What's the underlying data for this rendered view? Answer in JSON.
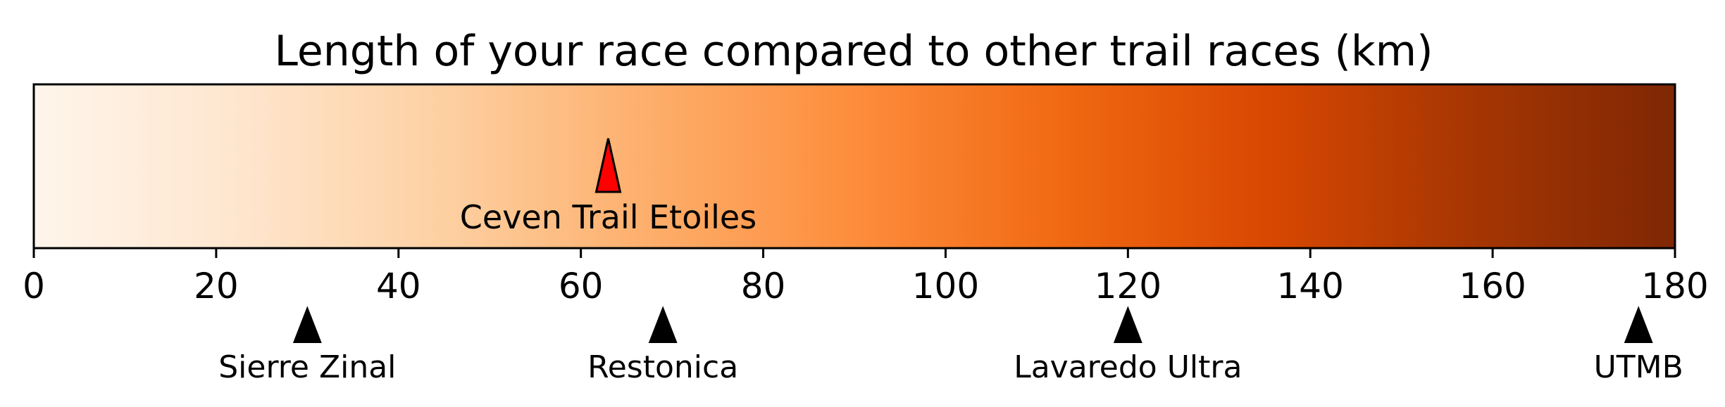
{
  "chart_data": {
    "type": "colorbar",
    "title": "Length of your race compared to other trail races (km)",
    "xlim": [
      0,
      180
    ],
    "ticks": [
      0,
      20,
      40,
      60,
      80,
      100,
      120,
      140,
      160,
      180
    ],
    "tick_labels": [
      "0",
      "20",
      "40",
      "60",
      "80",
      "100",
      "120",
      "140",
      "160",
      "180"
    ],
    "colormap": [
      "#fff5eb",
      "#fee6ce",
      "#fdd0a2",
      "#fdae6b",
      "#fd8d3c",
      "#f16913",
      "#d94801",
      "#a63603",
      "#7f2704"
    ],
    "your_race": {
      "name": "Ceven Trail Etoiles",
      "value": 63,
      "marker_color": "#ff0000"
    },
    "reference_races": [
      {
        "name": "Sierre Zinal",
        "value": 30
      },
      {
        "name": "Restonica",
        "value": 69
      },
      {
        "name": "Lavaredo Ultra",
        "value": 120
      },
      {
        "name": "UTMB",
        "value": 176
      }
    ]
  }
}
